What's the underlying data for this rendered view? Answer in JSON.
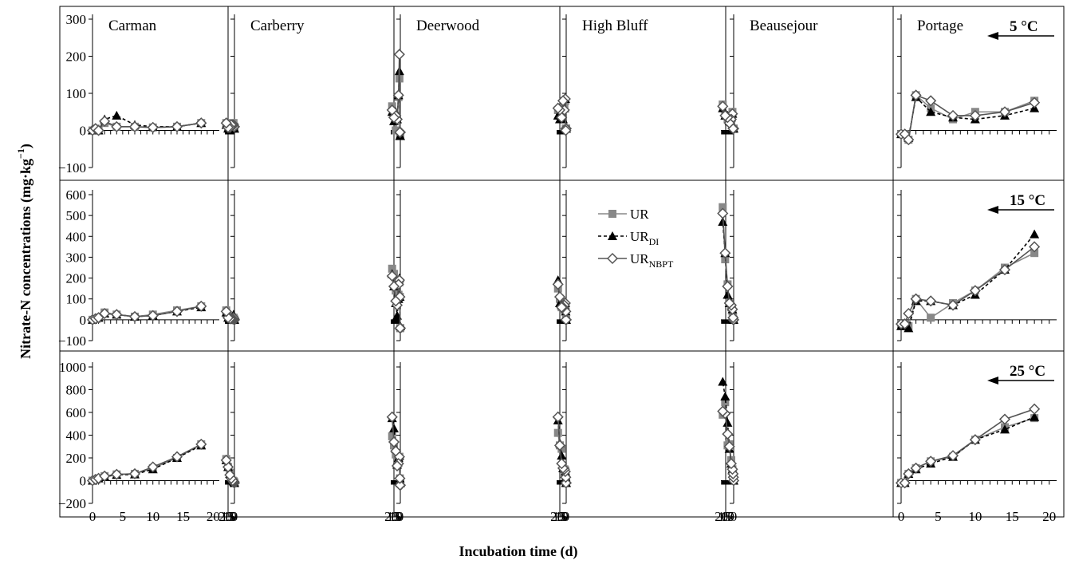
{
  "chart_data": {
    "type": "line",
    "xlabel": "Incubation time (d)",
    "ylabel": "Nitrate-N concentrations (mg·kg",
    "ylabel_sup": "−1",
    "ylabel_end": ")",
    "x_ticks": [
      0,
      5,
      10,
      15,
      20
    ],
    "sites": [
      "Carman",
      "Carberry",
      "Deerwood",
      "High Bluff",
      "Beausejour",
      "Portage"
    ],
    "rows": [
      {
        "temperature": "5 °C",
        "ylim": [
          -100,
          300
        ],
        "yticks": [
          300,
          200,
          100,
          0,
          -100
        ],
        "yticklabels": [
          "300",
          "200",
          "100",
          "0",
          "−100"
        ]
      },
      {
        "temperature": "15 °C",
        "ylim": [
          -100,
          600
        ],
        "yticks": [
          600,
          500,
          400,
          300,
          200,
          100,
          0,
          -100
        ],
        "yticklabels": [
          "600",
          "500",
          "400",
          "300",
          "200",
          "100",
          "0",
          "−100"
        ]
      },
      {
        "temperature": "25 °C",
        "ylim": [
          -200,
          1000
        ],
        "yticks": [
          1000,
          800,
          600,
          400,
          200,
          0,
          -200
        ],
        "yticklabels": [
          "1000",
          "800",
          "600",
          "400",
          "200",
          "0",
          "−200"
        ]
      }
    ],
    "series_meta": [
      {
        "key": "UR",
        "label": "UR",
        "sub": "",
        "color": "#888888",
        "marker": "square",
        "dash": "none"
      },
      {
        "key": "URDI",
        "label": "UR",
        "sub": "DI",
        "color": "#000000",
        "marker": "triangle",
        "dash": "4,3"
      },
      {
        "key": "URNBPT",
        "label": "UR",
        "sub": "NBPT",
        "color": "#555555",
        "marker": "diamond",
        "dash": "none"
      }
    ],
    "x": [
      0,
      0.5,
      1,
      2,
      4,
      7,
      10,
      14,
      18
    ],
    "panels": [
      [
        {
          "UR": [
            0,
            5,
            0,
            20,
            10,
            10,
            8,
            10,
            20
          ],
          "URDI": [
            0,
            5,
            0,
            30,
            40,
            15,
            10,
            10,
            20
          ],
          "URNBPT": [
            0,
            5,
            0,
            25,
            10,
            10,
            8,
            10,
            20
          ]
        },
        {
          "UR": [
            0,
            5,
            10,
            35,
            25,
            15,
            25,
            45,
            65
          ],
          "URDI": [
            0,
            5,
            10,
            30,
            25,
            15,
            20,
            40,
            60
          ],
          "URNBPT": [
            0,
            5,
            10,
            30,
            25,
            15,
            20,
            40,
            65
          ]
        },
        {
          "UR": [
            0,
            10,
            20,
            40,
            55,
            60,
            110,
            200,
            320
          ],
          "URDI": [
            0,
            10,
            20,
            35,
            50,
            55,
            100,
            200,
            310
          ],
          "URNBPT": [
            0,
            10,
            20,
            40,
            55,
            60,
            120,
            210,
            320
          ]
        }
      ],
      [
        {
          "UR": [
            10,
            10,
            10,
            20,
            15,
            10,
            10,
            8,
            20
          ],
          "URDI": [
            5,
            5,
            5,
            15,
            10,
            5,
            5,
            5,
            15
          ],
          "URNBPT": [
            10,
            10,
            10,
            15,
            15,
            15,
            8,
            8,
            20
          ]
        },
        {
          "UR": [
            0,
            0,
            5,
            10,
            5,
            0,
            5,
            20,
            45
          ],
          "URDI": [
            0,
            0,
            5,
            25,
            10,
            5,
            0,
            10,
            35
          ],
          "URNBPT": [
            0,
            0,
            5,
            10,
            5,
            5,
            5,
            10,
            40
          ]
        },
        {
          "UR": [
            -20,
            -20,
            -10,
            -5,
            0,
            20,
            70,
            120,
            190
          ],
          "URDI": [
            -20,
            -20,
            -10,
            -5,
            0,
            20,
            60,
            120,
            180
          ],
          "URNBPT": [
            -20,
            -20,
            -10,
            -5,
            0,
            20,
            50,
            120,
            180
          ]
        }
      ],
      [
        {
          "UR": [
            -10,
            -10,
            -10,
            140,
            90,
            30,
            0,
            40,
            65
          ],
          "URDI": [
            -15,
            -15,
            -15,
            160,
            95,
            30,
            50,
            25,
            50
          ],
          "URNBPT": [
            -5,
            -5,
            -5,
            205,
            95,
            30,
            40,
            35,
            55
          ]
        },
        {
          "UR": [
            -40,
            -40,
            110,
            180,
            120,
            70,
            140,
            220,
            245
          ],
          "URDI": [
            -30,
            -30,
            110,
            200,
            100,
            20,
            80,
            160,
            220
          ],
          "URNBPT": [
            -40,
            -40,
            110,
            190,
            170,
            70,
            90,
            160,
            210
          ]
        },
        {
          "UR": [
            -20,
            -20,
            20,
            210,
            200,
            160,
            230,
            310,
            390
          ],
          "URDI": [
            -20,
            -20,
            20,
            220,
            200,
            140,
            280,
            460,
            550
          ],
          "URNBPT": [
            -40,
            -40,
            20,
            210,
            150,
            130,
            260,
            340,
            560
          ]
        }
      ],
      [
        {
          "UR": [
            5,
            5,
            5,
            80,
            60,
            30,
            40,
            40,
            55
          ],
          "URDI": [
            5,
            5,
            5,
            85,
            60,
            30,
            35,
            30,
            40
          ],
          "URNBPT": [
            5,
            5,
            0,
            85,
            55,
            80,
            35,
            55,
            60
          ]
        },
        {
          "UR": [
            0,
            0,
            40,
            70,
            50,
            50,
            60,
            100,
            150
          ],
          "URDI": [
            0,
            0,
            40,
            80,
            70,
            70,
            70,
            80,
            190
          ],
          "URNBPT": [
            0,
            0,
            40,
            80,
            70,
            60,
            60,
            110,
            170
          ]
        },
        {
          "UR": [
            -20,
            -20,
            30,
            90,
            100,
            110,
            280,
            310,
            420
          ],
          "URDI": [
            -20,
            -20,
            30,
            80,
            110,
            110,
            220,
            330,
            530
          ],
          "URNBPT": [
            -20,
            -20,
            30,
            80,
            100,
            110,
            150,
            310,
            560
          ]
        }
      ],
      [
        {
          "UR": [
            5,
            5,
            5,
            50,
            25,
            25,
            30,
            40,
            70
          ],
          "URDI": [
            5,
            5,
            5,
            45,
            35,
            25,
            40,
            40,
            60
          ],
          "URNBPT": [
            5,
            5,
            5,
            45,
            30,
            20,
            35,
            40,
            65
          ]
        },
        {
          "UR": [
            0,
            0,
            10,
            40,
            60,
            80,
            170,
            290,
            540
          ],
          "URDI": [
            0,
            0,
            10,
            50,
            80,
            80,
            120,
            320,
            470
          ],
          "URNBPT": [
            0,
            0,
            10,
            50,
            70,
            80,
            160,
            320,
            510
          ]
        },
        {
          "UR": [
            0,
            30,
            60,
            100,
            180,
            320,
            310,
            690,
            580
          ],
          "URDI": [
            0,
            30,
            60,
            100,
            150,
            280,
            510,
            740,
            870
          ],
          "URNBPT": [
            0,
            30,
            60,
            100,
            150,
            300,
            410,
            590,
            610
          ]
        }
      ],
      [
        {
          "UR": [
            -10,
            -10,
            -25,
            95,
            60,
            30,
            50,
            50,
            80
          ],
          "URDI": [
            -10,
            -10,
            -20,
            90,
            50,
            35,
            30,
            40,
            60
          ],
          "URNBPT": [
            -10,
            -10,
            -25,
            95,
            80,
            40,
            40,
            50,
            75
          ]
        },
        {
          "UR": [
            -20,
            -20,
            -30,
            100,
            10,
            80,
            140,
            250,
            320
          ],
          "URDI": [
            -30,
            -30,
            -40,
            90,
            90,
            70,
            120,
            240,
            410
          ],
          "URNBPT": [
            -20,
            -20,
            30,
            100,
            90,
            70,
            140,
            240,
            350
          ]
        },
        {
          "UR": [
            -20,
            -20,
            60,
            110,
            170,
            210,
            360,
            470,
            550
          ],
          "URDI": [
            -20,
            -20,
            60,
            100,
            150,
            210,
            360,
            450,
            560
          ],
          "URNBPT": [
            -20,
            -20,
            60,
            110,
            170,
            220,
            360,
            540,
            630
          ]
        }
      ]
    ]
  }
}
